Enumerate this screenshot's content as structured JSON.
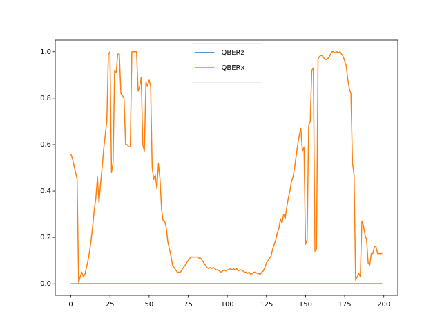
{
  "chart_data": {
    "type": "line",
    "x": [
      0,
      1,
      2,
      3,
      4,
      5,
      6,
      7,
      8,
      9,
      10,
      11,
      12,
      13,
      14,
      15,
      16,
      17,
      18,
      19,
      20,
      21,
      22,
      23,
      24,
      25,
      26,
      27,
      28,
      29,
      30,
      31,
      32,
      33,
      34,
      35,
      36,
      37,
      38,
      39,
      40,
      41,
      42,
      43,
      44,
      45,
      46,
      47,
      48,
      49,
      50,
      51,
      52,
      53,
      54,
      55,
      56,
      57,
      58,
      59,
      60,
      61,
      62,
      63,
      64,
      65,
      66,
      67,
      68,
      69,
      70,
      71,
      72,
      73,
      74,
      75,
      76,
      77,
      78,
      79,
      80,
      81,
      82,
      83,
      84,
      85,
      86,
      87,
      88,
      89,
      90,
      91,
      92,
      93,
      94,
      95,
      96,
      97,
      98,
      99,
      100,
      101,
      102,
      103,
      104,
      105,
      106,
      107,
      108,
      109,
      110,
      111,
      112,
      113,
      114,
      115,
      116,
      117,
      118,
      119,
      120,
      121,
      122,
      123,
      124,
      125,
      126,
      127,
      128,
      129,
      130,
      131,
      132,
      133,
      134,
      135,
      136,
      137,
      138,
      139,
      140,
      141,
      142,
      143,
      144,
      145,
      146,
      147,
      148,
      149,
      150,
      151,
      152,
      153,
      154,
      155,
      156,
      157,
      158,
      159,
      160,
      161,
      162,
      163,
      164,
      165,
      166,
      167,
      168,
      169,
      170,
      171,
      172,
      173,
      174,
      175,
      176,
      177,
      178,
      179,
      180,
      181,
      182,
      183,
      184,
      185,
      186,
      187,
      188,
      189,
      190,
      191,
      192,
      193,
      194,
      195,
      196,
      197,
      198,
      199
    ],
    "series": [
      {
        "name": "QBERz",
        "color": "#1f77b4",
        "values": [
          0,
          0,
          0,
          0,
          0,
          0,
          0,
          0,
          0,
          0,
          0,
          0,
          0,
          0,
          0,
          0,
          0,
          0,
          0,
          0,
          0,
          0,
          0,
          0,
          0,
          0,
          0,
          0,
          0,
          0,
          0,
          0,
          0,
          0,
          0,
          0,
          0,
          0,
          0,
          0,
          0,
          0,
          0,
          0,
          0,
          0,
          0,
          0,
          0,
          0,
          0,
          0,
          0,
          0,
          0,
          0,
          0,
          0,
          0,
          0,
          0,
          0,
          0,
          0,
          0,
          0,
          0,
          0,
          0,
          0,
          0,
          0,
          0,
          0,
          0,
          0,
          0,
          0,
          0,
          0,
          0,
          0,
          0,
          0,
          0,
          0,
          0,
          0,
          0,
          0,
          0,
          0,
          0,
          0,
          0,
          0,
          0,
          0,
          0,
          0,
          0,
          0,
          0,
          0,
          0,
          0,
          0,
          0,
          0,
          0,
          0,
          0,
          0,
          0,
          0,
          0,
          0,
          0,
          0,
          0,
          0,
          0,
          0,
          0,
          0,
          0,
          0,
          0,
          0,
          0,
          0,
          0,
          0,
          0,
          0,
          0,
          0,
          0,
          0,
          0,
          0,
          0,
          0,
          0,
          0,
          0,
          0,
          0,
          0,
          0,
          0,
          0,
          0,
          0,
          0,
          0,
          0,
          0,
          0,
          0,
          0,
          0,
          0,
          0,
          0,
          0,
          0,
          0,
          0,
          0,
          0,
          0,
          0,
          0,
          0,
          0,
          0,
          0,
          0,
          0,
          0,
          0,
          0,
          0,
          0,
          0,
          0,
          0,
          0,
          0,
          0,
          0,
          0,
          0,
          0,
          0,
          0,
          0,
          0,
          0
        ]
      },
      {
        "name": "QBERx",
        "color": "#ff7f0e",
        "values": [
          0.56,
          0.54,
          0.51,
          0.48,
          0.45,
          0.005,
          0.03,
          0.05,
          0.03,
          0.04,
          0.07,
          0.1,
          0.14,
          0.19,
          0.25,
          0.32,
          0.37,
          0.46,
          0.35,
          0.43,
          0.5,
          0.58,
          0.64,
          0.7,
          0.99,
          1.0,
          0.48,
          0.52,
          0.92,
          0.91,
          0.99,
          0.99,
          0.82,
          0.81,
          0.8,
          0.6,
          0.6,
          0.59,
          0.59,
          1.0,
          1.0,
          1.0,
          1.0,
          0.83,
          0.85,
          0.89,
          0.6,
          0.57,
          0.87,
          0.85,
          0.88,
          0.85,
          0.5,
          0.45,
          0.47,
          0.41,
          0.52,
          0.45,
          0.32,
          0.27,
          0.27,
          0.24,
          0.18,
          0.15,
          0.12,
          0.08,
          0.07,
          0.06,
          0.05,
          0.05,
          0.05,
          0.06,
          0.07,
          0.08,
          0.09,
          0.1,
          0.11,
          0.115,
          0.115,
          0.115,
          0.115,
          0.115,
          0.11,
          0.11,
          0.1,
          0.09,
          0.08,
          0.07,
          0.065,
          0.07,
          0.065,
          0.07,
          0.065,
          0.06,
          0.06,
          0.055,
          0.05,
          0.055,
          0.06,
          0.055,
          0.06,
          0.06,
          0.065,
          0.06,
          0.065,
          0.06,
          0.065,
          0.055,
          0.06,
          0.06,
          0.055,
          0.05,
          0.05,
          0.045,
          0.05,
          0.04,
          0.045,
          0.05,
          0.05,
          0.045,
          0.045,
          0.04,
          0.05,
          0.055,
          0.07,
          0.09,
          0.1,
          0.11,
          0.12,
          0.15,
          0.17,
          0.19,
          0.22,
          0.24,
          0.28,
          0.26,
          0.3,
          0.28,
          0.33,
          0.37,
          0.4,
          0.44,
          0.46,
          0.5,
          0.55,
          0.6,
          0.64,
          0.67,
          0.57,
          0.59,
          0.17,
          0.19,
          0.68,
          0.7,
          0.92,
          0.93,
          0.14,
          0.15,
          0.97,
          0.98,
          0.985,
          0.98,
          0.97,
          0.965,
          0.97,
          0.975,
          0.99,
          1.0,
          1.0,
          0.995,
          1.0,
          0.995,
          1.0,
          0.99,
          0.98,
          0.96,
          0.94,
          0.88,
          0.84,
          0.82,
          0.52,
          0.47,
          0.015,
          0.03,
          0.045,
          0.03,
          0.27,
          0.25,
          0.21,
          0.19,
          0.09,
          0.08,
          0.13,
          0.13,
          0.16,
          0.16,
          0.13,
          0.13,
          0.13,
          0.13
        ]
      }
    ],
    "xlim": [
      -9.95,
      208.95
    ],
    "xticks": [
      0,
      25,
      50,
      75,
      100,
      125,
      150,
      175,
      200
    ],
    "ylim": [
      -0.05,
      1.05
    ],
    "yticks": [
      {
        "value": 0,
        "label": "0.0"
      },
      0.2,
      0.4,
      0.6,
      0.8,
      {
        "value": 1,
        "label": "1.0"
      }
    ],
    "grid": false,
    "legend": "upper center"
  }
}
